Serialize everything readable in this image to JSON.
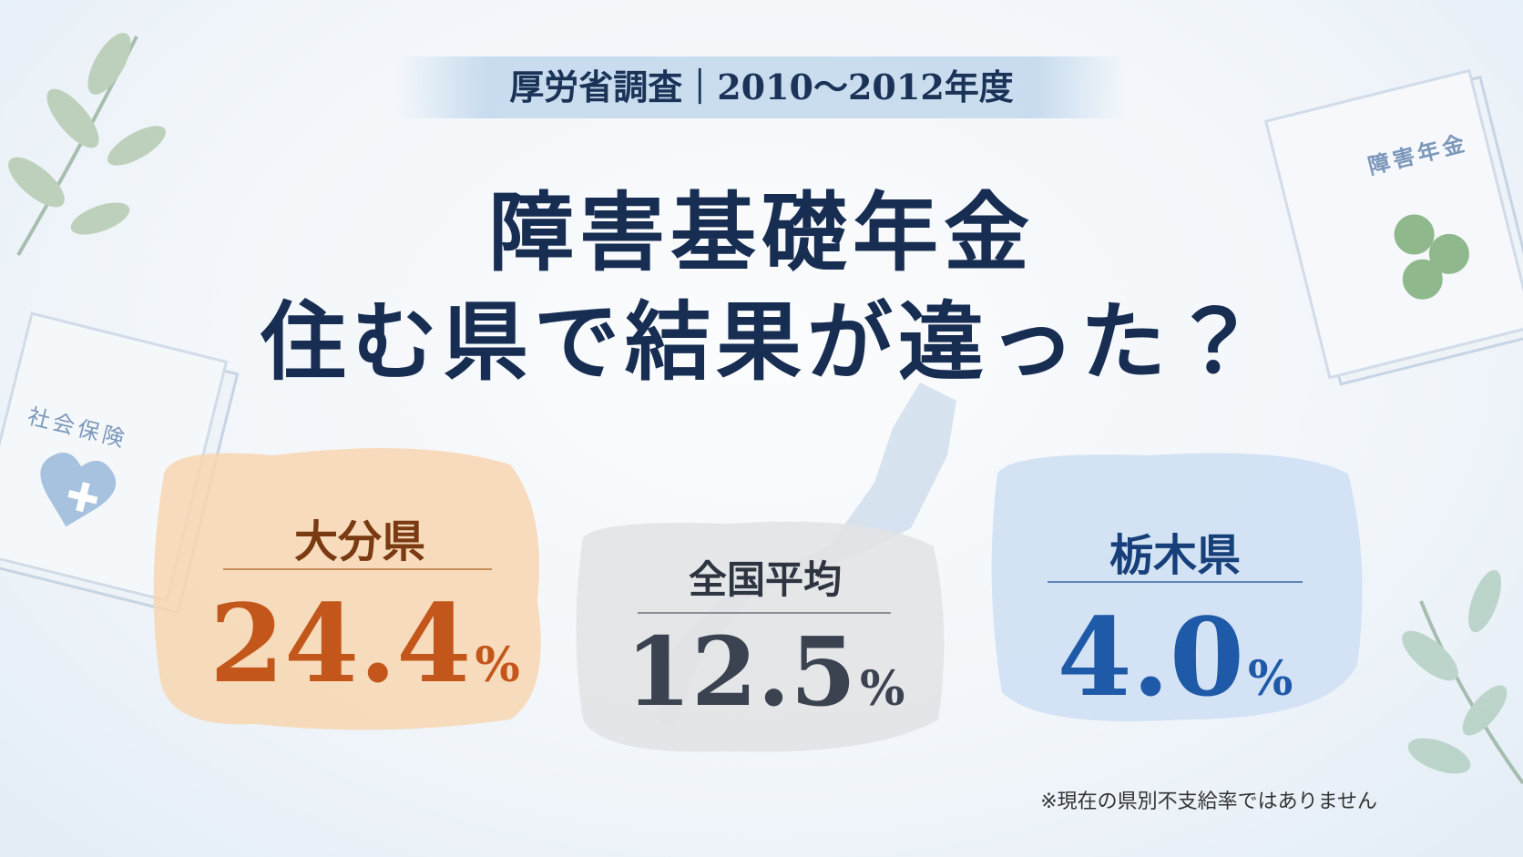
{
  "header": {
    "subtitle": "厚労省調査｜2010〜2012年度",
    "title_line1": "障害基礎年金",
    "title_line2": "住む県で結果が違った？"
  },
  "cards": [
    {
      "label": "大分県",
      "value": "24.4",
      "unit": "%"
    },
    {
      "label": "全国平均",
      "value": "12.5",
      "unit": "%"
    },
    {
      "label": "栃木県",
      "value": "4.0",
      "unit": "%"
    }
  ],
  "decorations": {
    "left_book": "社会保険",
    "right_book": "障害年金"
  },
  "footnote": "※現在の県別不支給率ではありません"
}
